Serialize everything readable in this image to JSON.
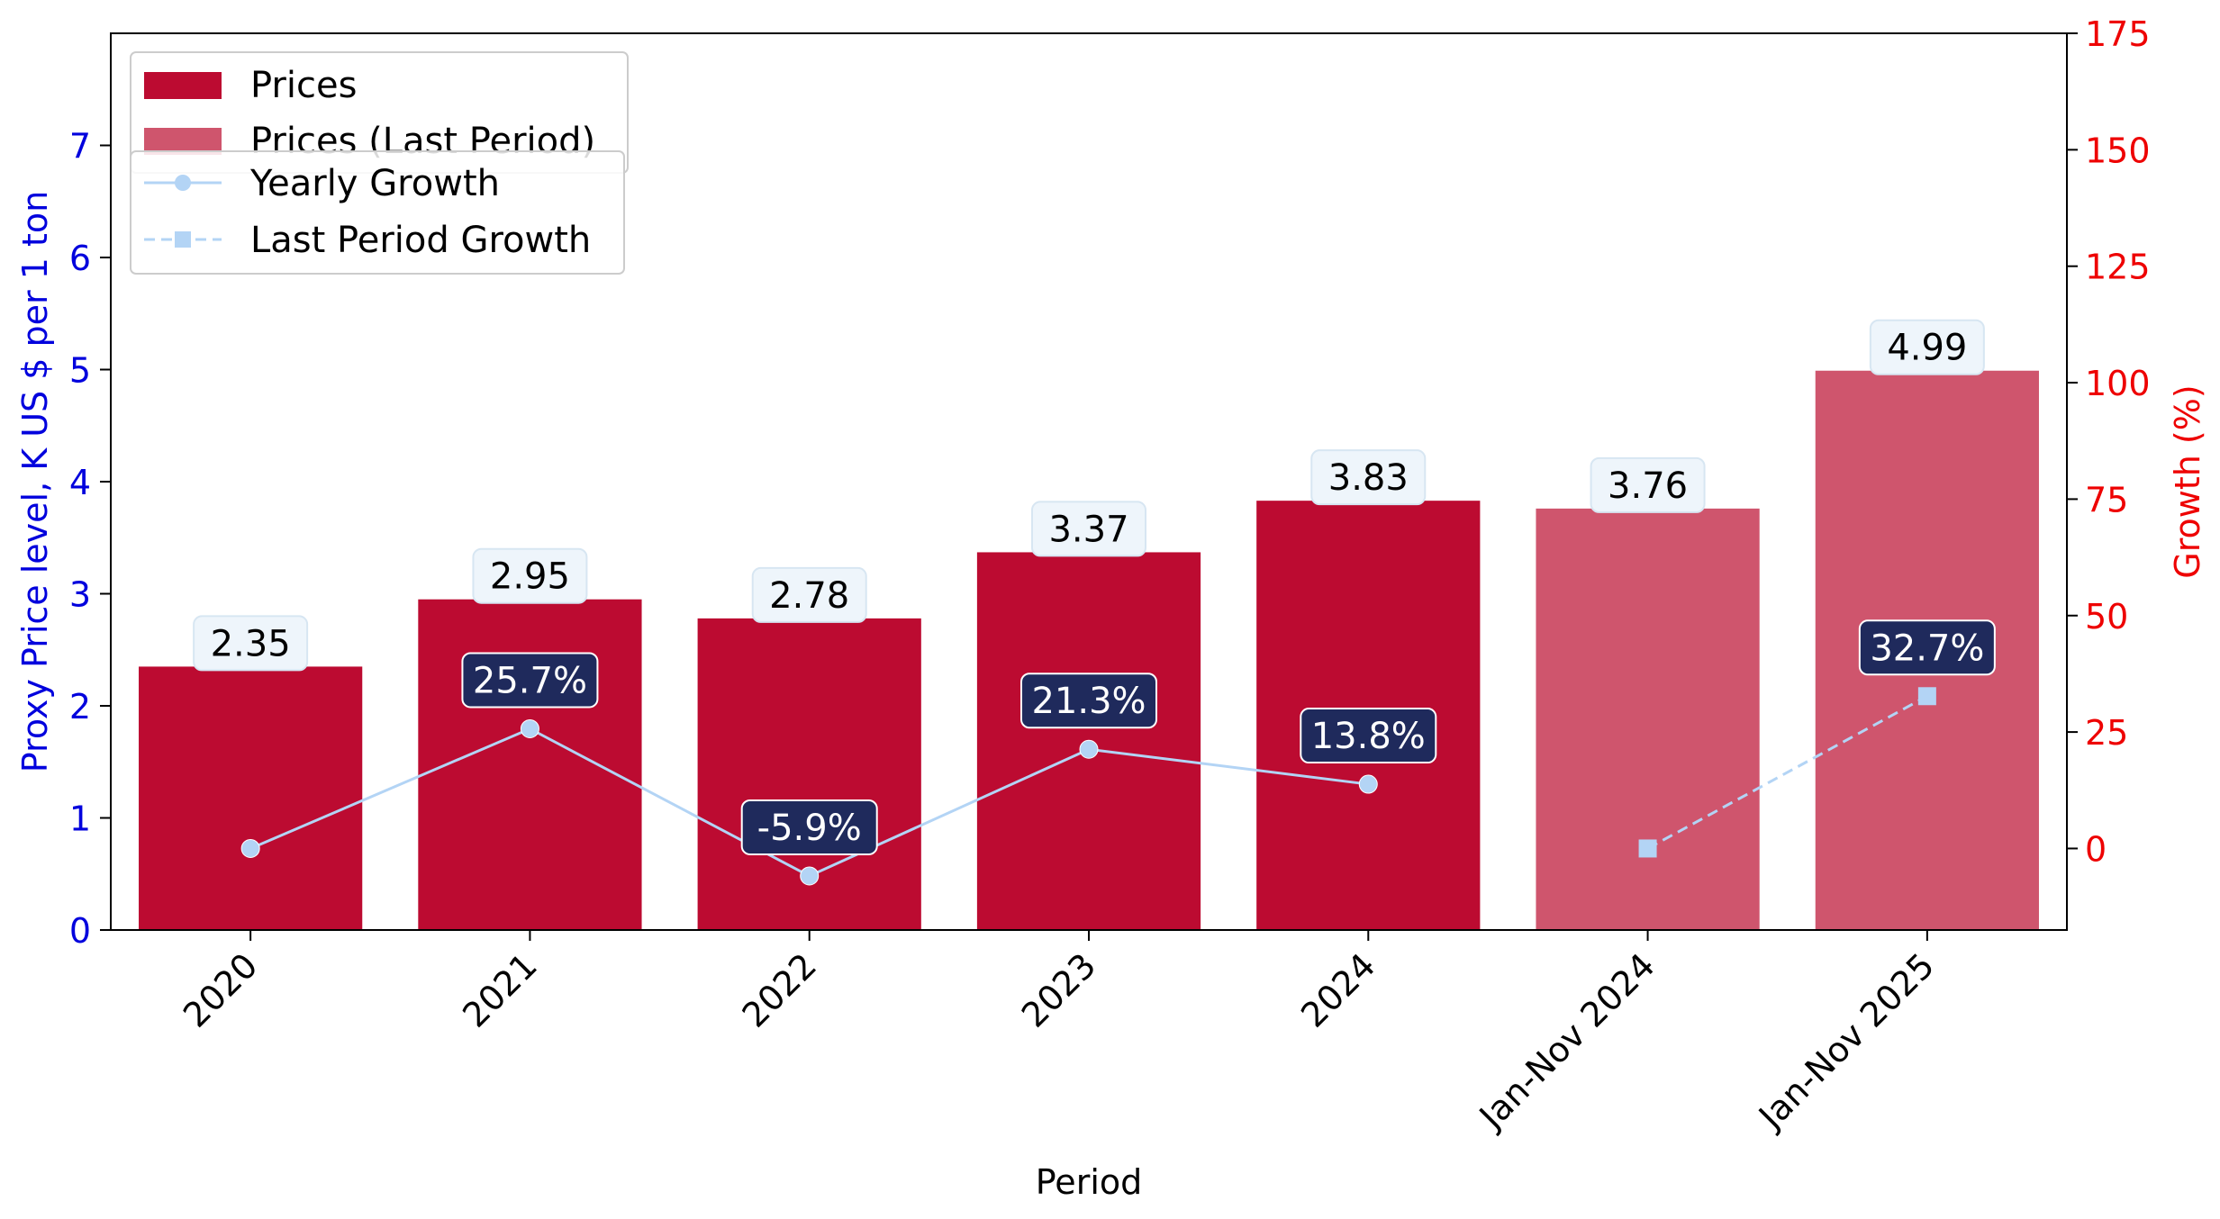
{
  "chart_data": {
    "type": "bar",
    "categories": [
      "2020",
      "2021",
      "2022",
      "2023",
      "2024",
      "Jan-Nov 2024",
      "Jan-Nov 2025"
    ],
    "xlabel": "Period",
    "ylabel": "Proxy Price level, K US $ per 1 ton",
    "y2label": "Growth (%)",
    "ylim": [
      0,
      8
    ],
    "y2lim": [
      -17.5,
      175
    ],
    "yticks": [
      0,
      1,
      2,
      3,
      4,
      5,
      6,
      7
    ],
    "y2ticks": [
      0,
      25,
      50,
      75,
      100,
      125,
      150,
      175
    ],
    "series": [
      {
        "name": "Prices",
        "kind": "bar",
        "color": "#bc0b31",
        "values": [
          2.35,
          2.95,
          2.78,
          3.37,
          3.83,
          null,
          null
        ],
        "labels": [
          "2.35",
          "2.95",
          "2.78",
          "3.37",
          "3.83",
          null,
          null
        ]
      },
      {
        "name": "Prices (Last Period)",
        "kind": "bar",
        "color": "#cf556d",
        "values": [
          null,
          null,
          null,
          null,
          null,
          3.76,
          4.99
        ],
        "labels": [
          null,
          null,
          null,
          null,
          null,
          "3.76",
          "4.99"
        ]
      },
      {
        "name": "Yearly Growth",
        "kind": "line",
        "axis": "right",
        "color": "#b3d4f5",
        "marker": "circle",
        "values": [
          0,
          25.7,
          -5.9,
          21.3,
          13.8,
          null,
          null
        ],
        "labels": [
          null,
          "25.7%",
          "-5.9%",
          "21.3%",
          "13.8%",
          null,
          null
        ]
      },
      {
        "name": "Last Period Growth",
        "kind": "line",
        "axis": "right",
        "style": "dashed",
        "color": "#b3d4f5",
        "marker": "square",
        "values": [
          null,
          null,
          null,
          null,
          null,
          0,
          32.7
        ],
        "labels": [
          null,
          null,
          null,
          null,
          null,
          null,
          "32.7%"
        ]
      }
    ],
    "legend": "top-left",
    "grid": false,
    "colors": {
      "left_axis": "#0000dd",
      "right_axis": "#ee0000",
      "growth_label_bg": "#1f2a5c",
      "price_label_bg": "#eef5fb"
    }
  }
}
